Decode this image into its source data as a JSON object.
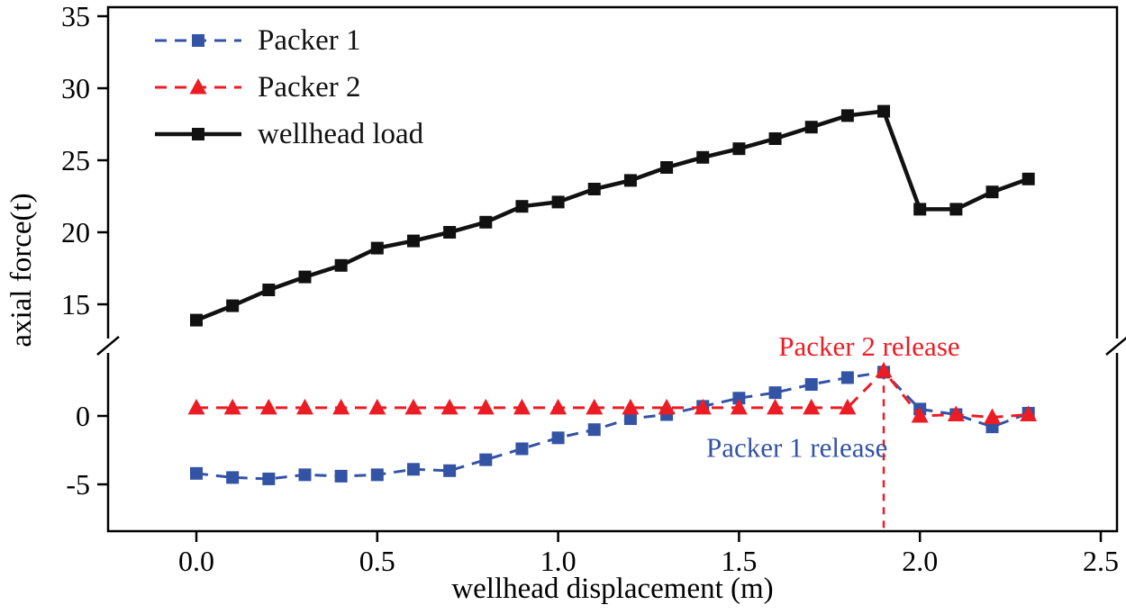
{
  "chart_data": {
    "type": "line",
    "title": "",
    "xlabel": "wellhead displacement (m)",
    "ylabel": "axial force(t)",
    "axis_break": true,
    "y_segments": [
      [
        -7,
        5
      ],
      [
        13,
        35
      ]
    ],
    "xlim": [
      -0.25,
      2.5
    ],
    "x_ticks": [
      0.0,
      0.5,
      1.0,
      1.5,
      2.0,
      2.5
    ],
    "y_ticks_top": [
      15,
      20,
      25,
      30,
      35
    ],
    "y_ticks_bottom": [
      -5,
      0
    ],
    "grid": false,
    "legend_position": "top-left",
    "x": [
      0.0,
      0.1,
      0.2,
      0.3,
      0.4,
      0.5,
      0.6,
      0.7,
      0.8,
      0.9,
      1.0,
      1.1,
      1.2,
      1.3,
      1.4,
      1.5,
      1.6,
      1.7,
      1.8,
      1.9,
      2.0,
      2.1,
      2.2,
      2.3
    ],
    "series": [
      {
        "name": "Packer 1",
        "color": "#3353a4",
        "marker": "square",
        "line": "dashed",
        "values": [
          -4.2,
          -4.5,
          -4.6,
          -4.3,
          -4.4,
          -4.3,
          -3.9,
          -4.0,
          -3.2,
          -2.4,
          -1.6,
          -1.0,
          -0.2,
          0.1,
          0.7,
          1.3,
          1.7,
          2.3,
          2.8,
          3.2,
          0.5,
          0.1,
          -0.8,
          0.2
        ]
      },
      {
        "name": "Packer 2",
        "color": "#ec1c24",
        "marker": "triangle",
        "line": "dashed",
        "values": [
          0.6,
          0.6,
          0.6,
          0.6,
          0.6,
          0.6,
          0.6,
          0.6,
          0.6,
          0.6,
          0.6,
          0.6,
          0.6,
          0.6,
          0.6,
          0.6,
          0.6,
          0.6,
          0.6,
          3.3,
          0.0,
          0.1,
          -0.1,
          0.1
        ]
      },
      {
        "name": "wellhead load",
        "color": "#111111",
        "marker": "square",
        "line": "solid",
        "values": [
          13.9,
          14.9,
          16.0,
          16.9,
          17.7,
          18.9,
          19.4,
          20.0,
          20.7,
          21.8,
          22.1,
          23.0,
          23.6,
          24.5,
          25.2,
          25.8,
          26.5,
          27.3,
          28.1,
          28.4,
          21.6,
          21.6,
          22.8,
          23.7
        ]
      }
    ],
    "annotations": [
      {
        "text": "Packer 2 release",
        "color": "#ec1c24",
        "x": 1.86,
        "y": 5.1
      },
      {
        "text": "Packer 1 release",
        "color": "#3353a4",
        "x": 1.66,
        "y": -2.3
      }
    ],
    "vline": {
      "x": 1.9,
      "y_top": 3.2,
      "color": "#ec1c24",
      "style": "dashed"
    }
  }
}
